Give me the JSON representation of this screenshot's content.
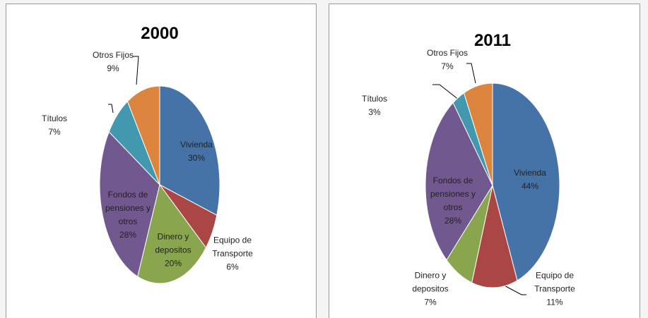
{
  "chart_data": [
    {
      "type": "pie",
      "title": "2000",
      "categories": [
        "Vivienda",
        "Equipo de Transporte",
        "Dinero y depositos",
        "Fondos de pensiones y otros",
        "Títulos",
        "Otros Fijos"
      ],
      "values": [
        30,
        6,
        20,
        28,
        7,
        9
      ],
      "value_labels": [
        "30%",
        "6%",
        "20%",
        "28%",
        "7%",
        "9%"
      ],
      "colors": [
        "#4572a7",
        "#aa4643",
        "#89a54e",
        "#71588f",
        "#4198af",
        "#db843d"
      ]
    },
    {
      "type": "pie",
      "title": "2011",
      "categories": [
        "Vivienda",
        "Equipo de Transporte",
        "Dinero y depositos",
        "Fondos de pensiones y otros",
        "Títulos",
        "Otros Fijos"
      ],
      "values": [
        44,
        11,
        7,
        28,
        3,
        7
      ],
      "value_labels": [
        "44%",
        "11%",
        "7%",
        "28%",
        "3%",
        "7%"
      ],
      "colors": [
        "#4572a7",
        "#aa4643",
        "#89a54e",
        "#71588f",
        "#4198af",
        "#db843d"
      ]
    }
  ]
}
